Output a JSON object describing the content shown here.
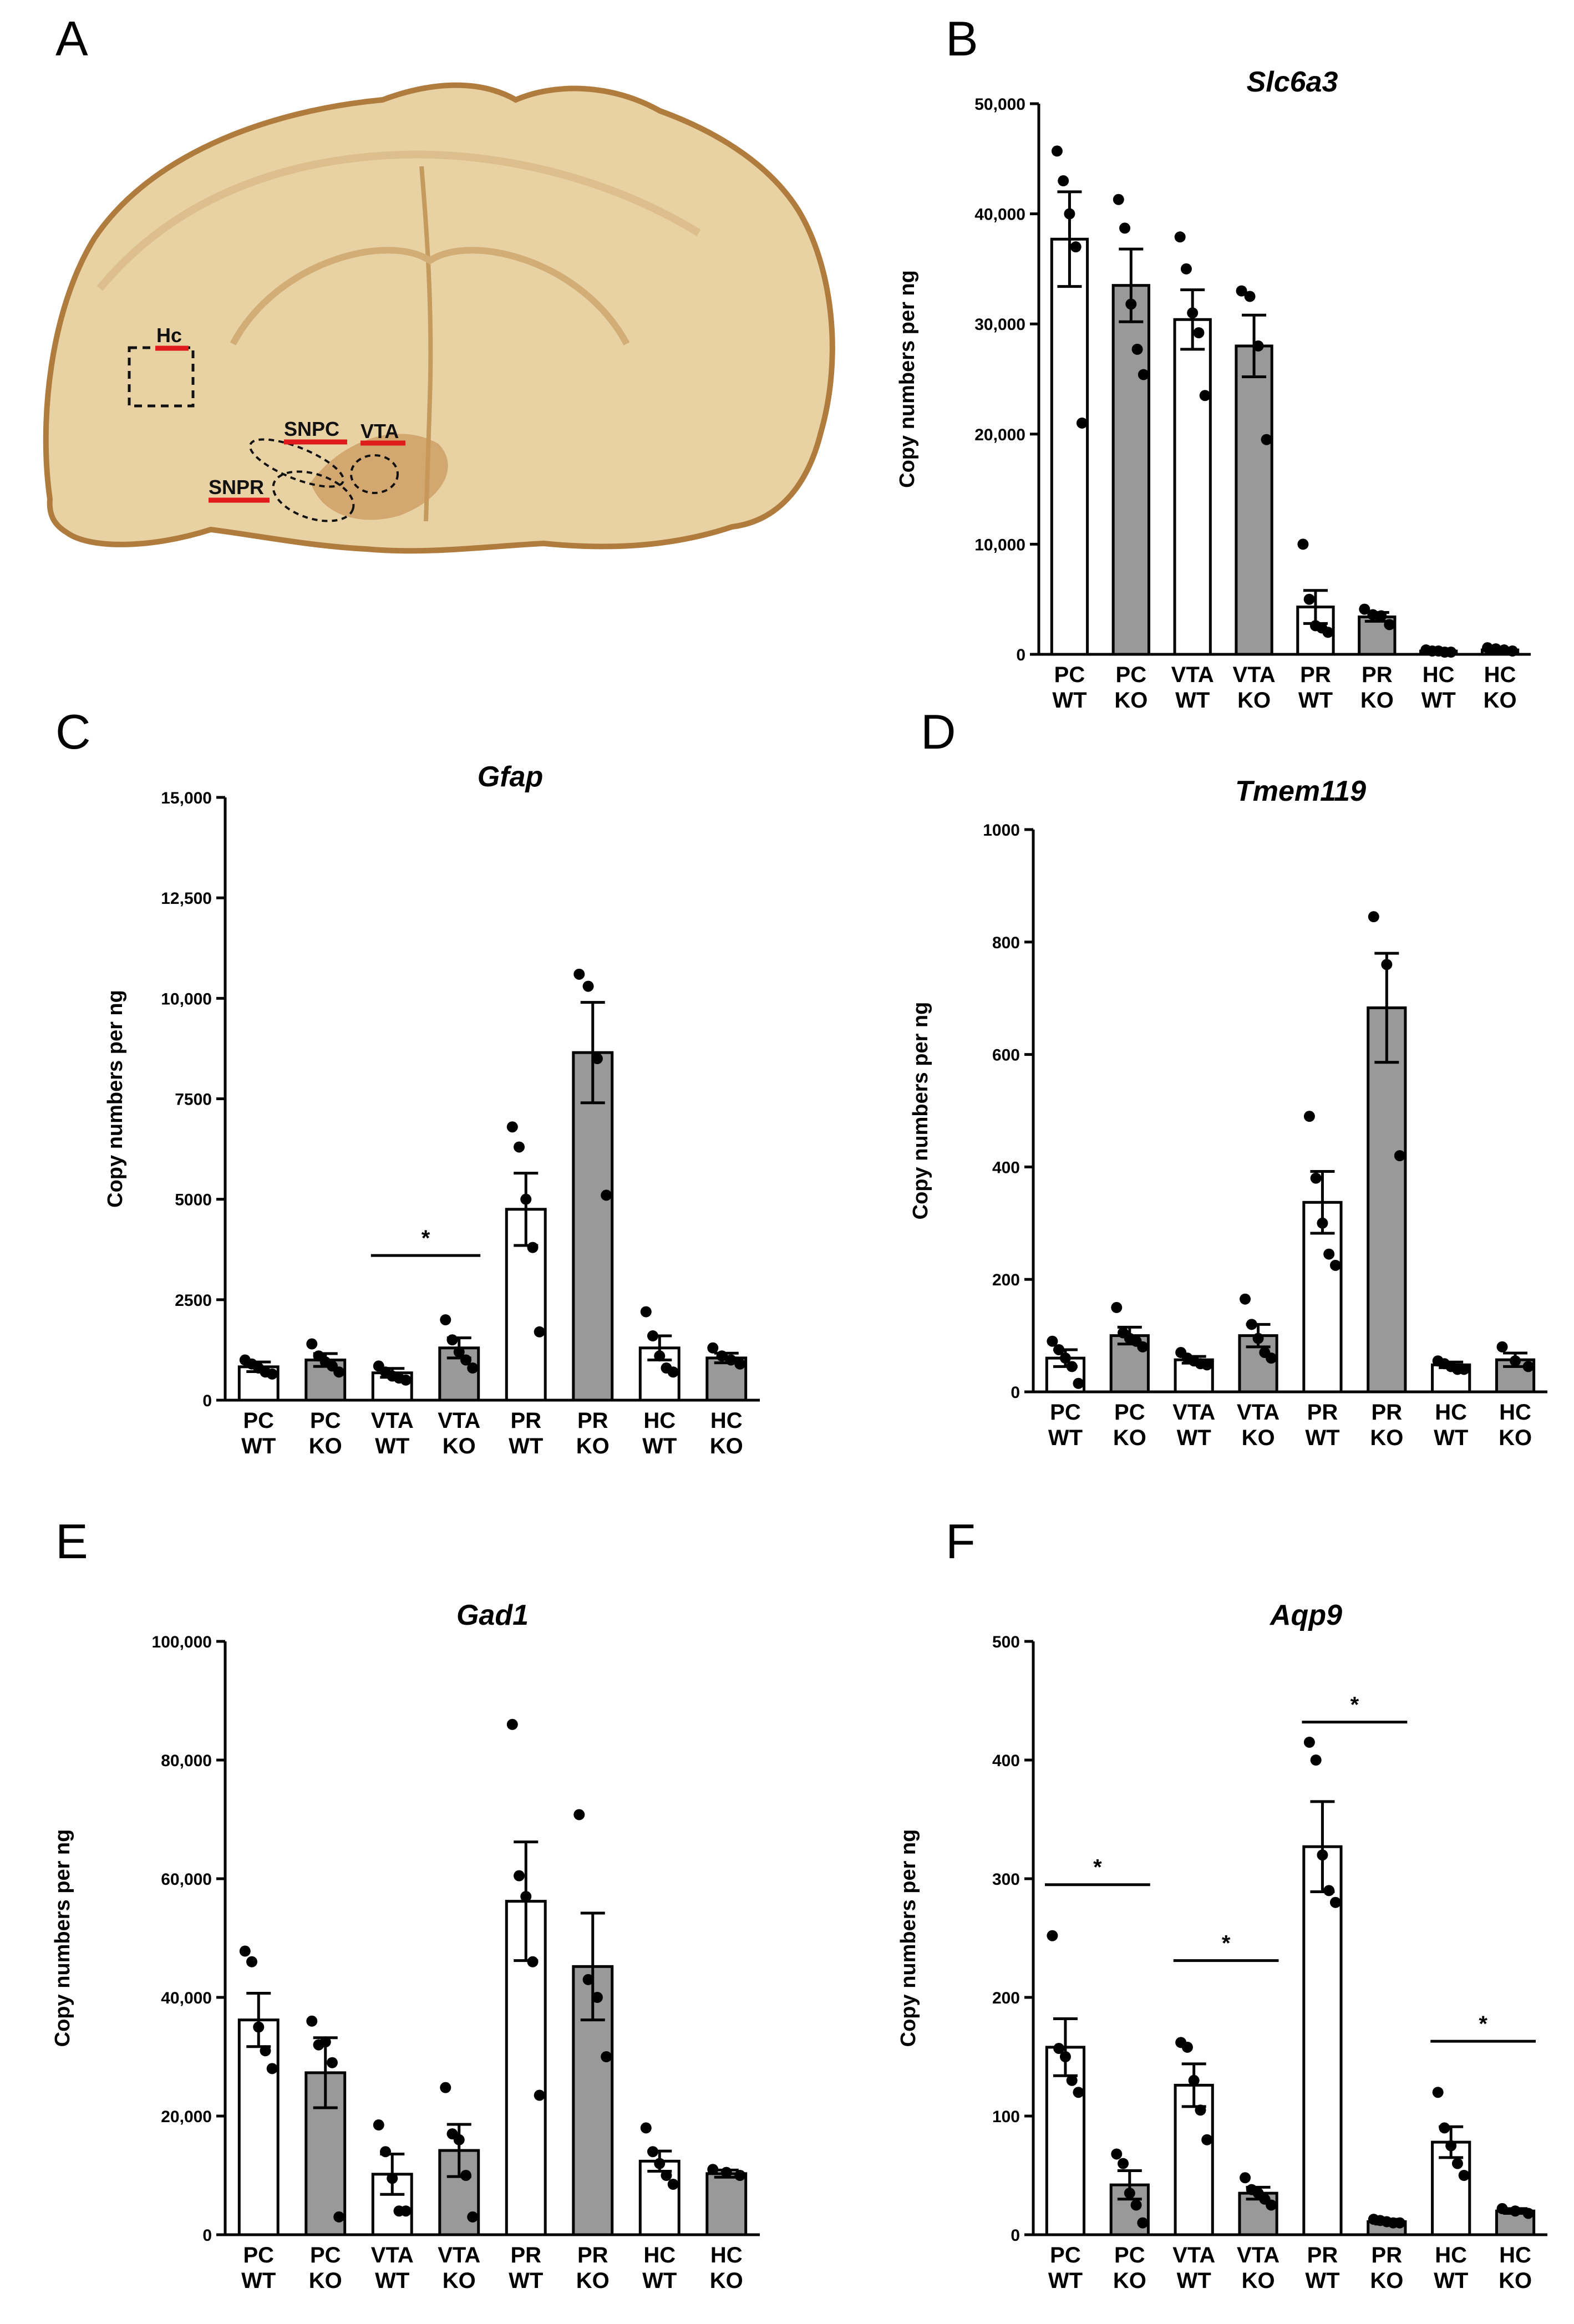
{
  "panels": [
    {
      "letter": "A"
    },
    {
      "letter": "B"
    },
    {
      "letter": "C"
    },
    {
      "letter": "D"
    },
    {
      "letter": "E"
    },
    {
      "letter": "F"
    }
  ],
  "brain_image": {
    "labels": [
      "Hc",
      "SNPC",
      "VTA",
      "SNPR"
    ],
    "colors": {
      "tissue": "#e8d2a4",
      "stain": "#b07c3e",
      "marker": "#e01b1b"
    }
  },
  "colors": {
    "wt_fill": "#ffffff",
    "ko_fill": "#999999",
    "ink": "#000000"
  },
  "chart_data": [
    {
      "panel": "B",
      "type": "bar",
      "title": "Slc6a3",
      "ylabel": "Copy numbers per ng",
      "categories": [
        [
          "PC",
          "WT"
        ],
        [
          "PC",
          "KO"
        ],
        [
          "VTA",
          "WT"
        ],
        [
          "VTA",
          "KO"
        ],
        [
          "PR",
          "WT"
        ],
        [
          "PR",
          "KO"
        ],
        [
          "HC",
          "WT"
        ],
        [
          "HC",
          "KO"
        ]
      ],
      "groups": [
        "WT",
        "KO",
        "WT",
        "KO",
        "WT",
        "KO",
        "WT",
        "KO"
      ],
      "ylim": [
        0,
        50000
      ],
      "yticks": [
        0,
        10000,
        20000,
        30000,
        40000,
        50000
      ],
      "yticklabels": [
        "0",
        "10,000",
        "20,000",
        "30,000",
        "40,000",
        "50,000"
      ],
      "values": [
        37700,
        33500,
        30400,
        28000,
        4300,
        3400,
        300,
        400
      ],
      "errors": [
        4300,
        3300,
        2700,
        2800,
        1500,
        400,
        100,
        150
      ],
      "points": [
        [
          45700,
          43000,
          40000,
          37000,
          21000
        ],
        [
          41300,
          38700,
          31800,
          27700,
          25400
        ],
        [
          37900,
          35000,
          31000,
          29200,
          23500
        ],
        [
          33000,
          32500,
          28000,
          19500
        ],
        [
          10000,
          5000,
          2600,
          2400,
          2000
        ],
        [
          4100,
          3600,
          3500,
          2700
        ],
        [
          400,
          300,
          300,
          200,
          200
        ],
        [
          600,
          500,
          400,
          300
        ]
      ],
      "significance": []
    },
    {
      "panel": "C",
      "type": "bar",
      "title": "Gfap",
      "ylabel": "Copy numbers per ng",
      "categories": [
        [
          "PC",
          "WT"
        ],
        [
          "PC",
          "KO"
        ],
        [
          "VTA",
          "WT"
        ],
        [
          "VTA",
          "KO"
        ],
        [
          "PR",
          "WT"
        ],
        [
          "PR",
          "KO"
        ],
        [
          "HC",
          "WT"
        ],
        [
          "HC",
          "KO"
        ]
      ],
      "groups": [
        "WT",
        "KO",
        "WT",
        "KO",
        "WT",
        "KO",
        "WT",
        "KO"
      ],
      "ylim": [
        0,
        15000
      ],
      "yticks": [
        0,
        2500,
        5000,
        7500,
        10000,
        12500,
        15000
      ],
      "yticklabels": [
        "0",
        "2500",
        "5000",
        "7500",
        "10,000",
        "12,500",
        "15,000"
      ],
      "values": [
        830,
        1000,
        680,
        1300,
        4750,
        8650,
        1300,
        1050
      ],
      "errors": [
        120,
        160,
        110,
        250,
        900,
        1250,
        300,
        120
      ],
      "points": [
        [
          1000,
          900,
          800,
          700,
          650
        ],
        [
          1400,
          1100,
          950,
          850,
          700
        ],
        [
          850,
          700,
          600,
          550,
          500
        ],
        [
          2000,
          1500,
          1200,
          1000,
          800
        ],
        [
          6800,
          6300,
          5000,
          3800,
          1700
        ],
        [
          10600,
          10300,
          8500,
          5100
        ],
        [
          2200,
          1600,
          1100,
          800,
          700
        ],
        [
          1300,
          1100,
          1000,
          900
        ]
      ],
      "significance": [
        {
          "from": 2,
          "to": 3,
          "y": 3600,
          "label": "*"
        }
      ]
    },
    {
      "panel": "D",
      "type": "bar",
      "title": "Tmem119",
      "ylabel": "Copy numbers per ng",
      "categories": [
        [
          "PC",
          "WT"
        ],
        [
          "PC",
          "KO"
        ],
        [
          "VTA",
          "WT"
        ],
        [
          "VTA",
          "KO"
        ],
        [
          "PR",
          "WT"
        ],
        [
          "PR",
          "KO"
        ],
        [
          "HC",
          "WT"
        ],
        [
          "HC",
          "KO"
        ]
      ],
      "groups": [
        "WT",
        "KO",
        "WT",
        "KO",
        "WT",
        "KO",
        "WT",
        "KO"
      ],
      "ylim": [
        0,
        1000
      ],
      "yticks": [
        0,
        200,
        400,
        600,
        800,
        1000
      ],
      "yticklabels": [
        "0",
        "200",
        "400",
        "600",
        "800",
        "1000"
      ],
      "values": [
        60,
        100,
        57,
        100,
        337,
        683,
        48,
        57
      ],
      "errors": [
        15,
        15,
        6,
        20,
        55,
        97,
        5,
        12
      ],
      "points": [
        [
          90,
          75,
          60,
          45,
          15
        ],
        [
          150,
          105,
          95,
          90,
          80
        ],
        [
          70,
          60,
          55,
          50,
          48
        ],
        [
          165,
          120,
          95,
          70,
          60
        ],
        [
          490,
          380,
          300,
          245,
          225
        ],
        [
          845,
          760,
          420
        ],
        [
          55,
          50,
          45,
          40,
          40
        ],
        [
          80,
          55,
          45
        ]
      ],
      "significance": []
    },
    {
      "panel": "E",
      "type": "bar",
      "title": "Gad1",
      "ylabel": "Copy numbers per ng",
      "categories": [
        [
          "PC",
          "WT"
        ],
        [
          "PC",
          "KO"
        ],
        [
          "VTA",
          "WT"
        ],
        [
          "VTA",
          "KO"
        ],
        [
          "PR",
          "WT"
        ],
        [
          "PR",
          "KO"
        ],
        [
          "HC",
          "WT"
        ],
        [
          "HC",
          "KO"
        ]
      ],
      "groups": [
        "WT",
        "KO",
        "WT",
        "KO",
        "WT",
        "KO",
        "WT",
        "KO"
      ],
      "ylim": [
        0,
        100000
      ],
      "yticks": [
        0,
        20000,
        40000,
        60000,
        80000,
        100000
      ],
      "yticklabels": [
        "0",
        "20,000",
        "40,000",
        "60,000",
        "80,000",
        "100,000"
      ],
      "values": [
        36200,
        27300,
        10200,
        14200,
        56200,
        45200,
        12400,
        10300
      ],
      "errors": [
        4500,
        5900,
        3400,
        4400,
        10000,
        9000,
        1700,
        600
      ],
      "points": [
        [
          47800,
          46000,
          35000,
          31000,
          28000
        ],
        [
          36000,
          32000,
          32500,
          29000,
          3000
        ],
        [
          18500,
          14000,
          9500,
          4000,
          4000
        ],
        [
          24800,
          17000,
          16000,
          10000,
          3000
        ],
        [
          86000,
          60500,
          57000,
          46000,
          23500
        ],
        [
          70800,
          43000,
          40000,
          30000
        ],
        [
          18000,
          14000,
          12000,
          10000,
          8500
        ],
        [
          11000,
          10500,
          10000
        ]
      ],
      "significance": []
    },
    {
      "panel": "F",
      "type": "bar",
      "title": "Aqp9",
      "ylabel": "Copy numbers per ng",
      "categories": [
        [
          "PC",
          "WT"
        ],
        [
          "PC",
          "KO"
        ],
        [
          "VTA",
          "WT"
        ],
        [
          "VTA",
          "KO"
        ],
        [
          "PR",
          "WT"
        ],
        [
          "PR",
          "KO"
        ],
        [
          "HC",
          "WT"
        ],
        [
          "HC",
          "KO"
        ]
      ],
      "groups": [
        "WT",
        "KO",
        "WT",
        "KO",
        "WT",
        "KO",
        "WT",
        "KO"
      ],
      "ylim": [
        0,
        500
      ],
      "yticks": [
        0,
        100,
        200,
        300,
        400,
        500
      ],
      "yticklabels": [
        "0",
        "100",
        "200",
        "300",
        "400",
        "500"
      ],
      "values": [
        158,
        42,
        126,
        35,
        327,
        11,
        78,
        20
      ],
      "errors": [
        24,
        12,
        18,
        5,
        38,
        2,
        13,
        2
      ],
      "points": [
        [
          252,
          157,
          150,
          130,
          120
        ],
        [
          68,
          60,
          35,
          25,
          10
        ],
        [
          162,
          158,
          130,
          105,
          80
        ],
        [
          48,
          38,
          35,
          30,
          25
        ],
        [
          415,
          400,
          320,
          290,
          280
        ],
        [
          13,
          12,
          11,
          10,
          10
        ],
        [
          120,
          90,
          75,
          60,
          50
        ],
        [
          22,
          20,
          18
        ]
      ],
      "significance": [
        {
          "from": 0,
          "to": 1,
          "y": 295,
          "label": "*"
        },
        {
          "from": 2,
          "to": 3,
          "y": 231,
          "label": "*"
        },
        {
          "from": 4,
          "to": 5,
          "y": 432,
          "label": "*"
        },
        {
          "from": 6,
          "to": 7,
          "y": 163,
          "label": "*"
        }
      ]
    }
  ]
}
